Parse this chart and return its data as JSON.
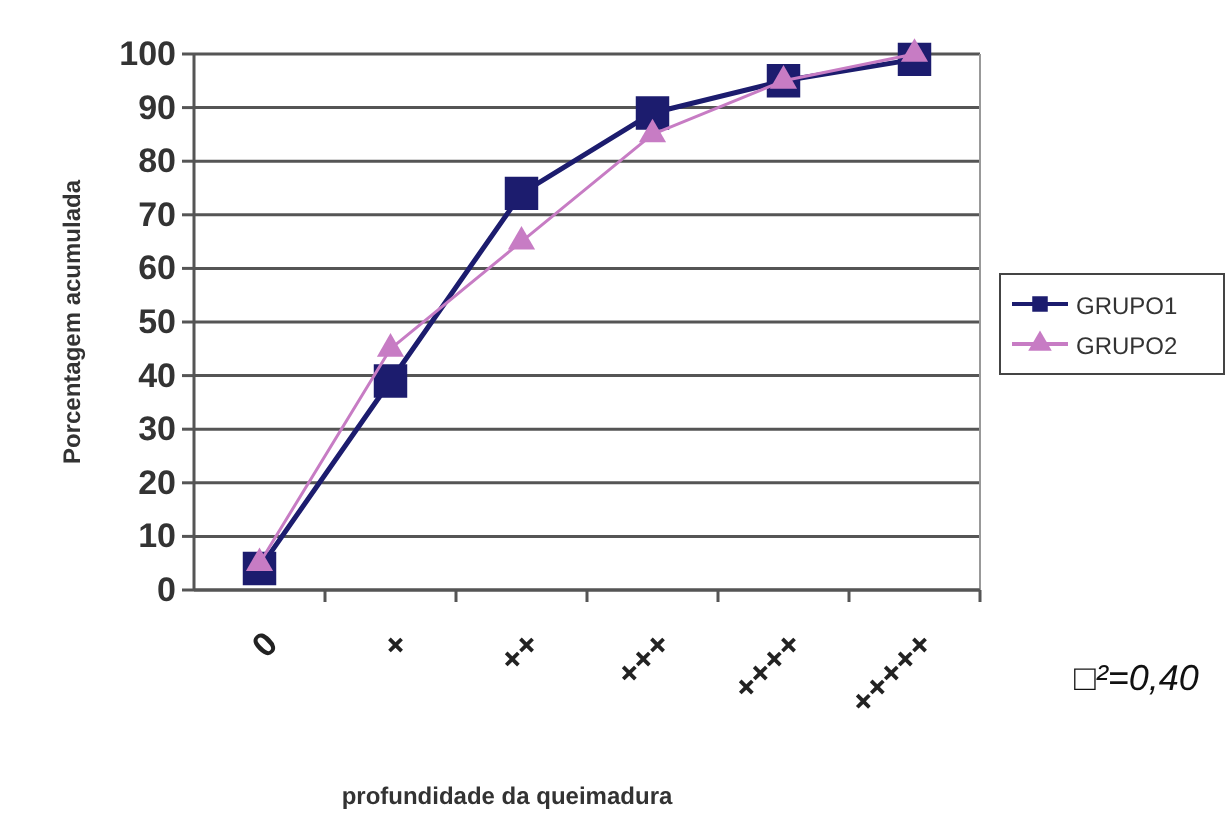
{
  "chart_data": {
    "type": "line",
    "xlabel": "profundidade da queimadura",
    "ylabel": "Porcentagem acumulada",
    "categories": [
      "0",
      "+",
      "++",
      "+++",
      "++++",
      "+++++"
    ],
    "series": [
      {
        "name": "GRUPO1",
        "color": "#1c1c6e",
        "marker": "square",
        "values": [
          4,
          39,
          74,
          89,
          95,
          99
        ]
      },
      {
        "name": "GRUPO2",
        "color": "#c77cc4",
        "marker": "triangle",
        "values": [
          5,
          45,
          65,
          85,
          95,
          100
        ]
      }
    ],
    "ylim": [
      0,
      100
    ],
    "yticks": [
      0,
      10,
      20,
      30,
      40,
      50,
      60,
      70,
      80,
      90,
      100
    ],
    "grid": "y",
    "legend": "right",
    "annotations": [
      "□²=0,40"
    ]
  }
}
